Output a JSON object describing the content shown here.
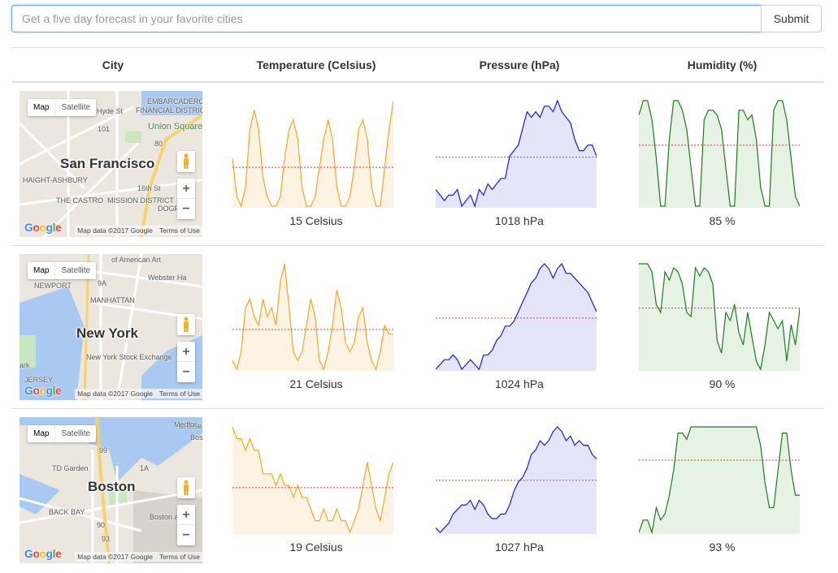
{
  "search": {
    "placeholder": "Get a five day forecast in your favorite cities",
    "submit_label": "Submit"
  },
  "table": {
    "headers": [
      "City",
      "Temperature (Celsius)",
      "Pressure (hPa)",
      "Humidity (%)"
    ]
  },
  "map_controls": {
    "map_label": "Map",
    "satellite_label": "Satellite",
    "zoom_in": "+",
    "zoom_out": "−",
    "google": "Google",
    "map_data": "Map data ©2017 Google",
    "terms": "Terms of Use"
  },
  "colors": {
    "temperature_line": "#f5a623",
    "temperature_fill": "#fdf3e3",
    "pressure_line": "#1a1ad8",
    "pressure_fill": "#e4e4fb",
    "humidity_line": "#1e7b1e",
    "humidity_fill": "#e6f2e4",
    "average_line": "#e23b3b"
  },
  "rows": [
    {
      "city": "San Francisco",
      "pois": [
        "EMBARCADERO",
        "FINANCIAL DISTRICT",
        "Union Square",
        "HAIGHT-ASHBURY",
        "THE CASTRO",
        "MISSION DISTRICT",
        "16th St",
        "DOGP",
        "101",
        "80",
        "Hyde St"
      ],
      "temperature_label": "15 Celsius",
      "pressure_label": "1018 hPa",
      "humidity_label": "85 %",
      "temperature": [
        14,
        10,
        9,
        11,
        17,
        19,
        17,
        12,
        10,
        9,
        9,
        10,
        14,
        17,
        18,
        16,
        11,
        9,
        9,
        10,
        13,
        16,
        18,
        16,
        11,
        9,
        9,
        10,
        13,
        17,
        18,
        16,
        11,
        9,
        9,
        13,
        17,
        20
      ],
      "pressure": [
        1012,
        1011,
        1010,
        1011,
        1011,
        1012,
        1009,
        1010,
        1011,
        1009,
        1012,
        1011,
        1013,
        1012,
        1013,
        1014,
        1014,
        1018,
        1019,
        1020,
        1023,
        1026,
        1025,
        1026,
        1025,
        1027,
        1027,
        1026,
        1028,
        1026,
        1025,
        1024,
        1021,
        1019,
        1019,
        1020,
        1020,
        1018
      ],
      "humidity": [
        85,
        88,
        88,
        84,
        76,
        66,
        66,
        80,
        88,
        88,
        86,
        82,
        74,
        66,
        66,
        84,
        86,
        86,
        85,
        82,
        74,
        66,
        66,
        86,
        86,
        84,
        85,
        80,
        70,
        66,
        66,
        86,
        88,
        88,
        84,
        76,
        68,
        66
      ]
    },
    {
      "city": "New York",
      "pois": [
        "of American Art",
        "Webster Ha",
        "NEWPORT",
        "MANHATTAN",
        "New York Stock Exchange",
        "JERSEY",
        "ark",
        "9A"
      ],
      "temperature_label": "21 Celsius",
      "pressure_label": "1024 hPa",
      "humidity_label": "90 %",
      "temperature": [
        17,
        16,
        18,
        23,
        24,
        22,
        21,
        24,
        22,
        23,
        21,
        26,
        28,
        23,
        18,
        17,
        18,
        21,
        24,
        22,
        17,
        16,
        18,
        21,
        25,
        23,
        19,
        18,
        19,
        22,
        23,
        19,
        17,
        16,
        18,
        21,
        20,
        20
      ],
      "pressure": [
        1012,
        1013,
        1014,
        1014,
        1015,
        1014,
        1012,
        1013,
        1014,
        1013,
        1012,
        1015,
        1015,
        1016,
        1018,
        1019,
        1021,
        1021,
        1022,
        1024,
        1026,
        1028,
        1030,
        1031,
        1033,
        1034,
        1033,
        1031,
        1033,
        1034,
        1032,
        1032,
        1031,
        1030,
        1029,
        1028,
        1026,
        1024
      ],
      "humidity": [
        100,
        100,
        100,
        98,
        90,
        88,
        98,
        96,
        99,
        98,
        95,
        88,
        87,
        99,
        97,
        99,
        98,
        95,
        81,
        78,
        88,
        86,
        90,
        83,
        80,
        88,
        82,
        76,
        74,
        80,
        88,
        86,
        84,
        86,
        76,
        85,
        80,
        89
      ]
    },
    {
      "city": "Boston",
      "pois": [
        "99",
        "1A",
        "TD Garden",
        "BACK BAY",
        "Boston and E",
        "Bos",
        "Chelsea",
        "90",
        "93",
        "Medfor"
      ],
      "temperature_label": "19 Celsius",
      "pressure_label": "1027 hPa",
      "humidity_label": "93 %",
      "temperature": [
        22,
        21,
        21,
        20,
        21,
        20,
        20,
        18,
        18,
        18,
        17,
        18,
        17,
        17,
        16,
        17,
        16,
        16,
        15,
        14,
        14,
        15,
        14,
        14,
        15,
        14,
        14,
        13,
        14,
        15,
        17,
        19,
        17,
        15,
        14,
        16,
        18,
        19
      ],
      "pressure": [
        1013,
        1012,
        1013,
        1014,
        1016,
        1017,
        1018,
        1018,
        1019,
        1017,
        1019,
        1018,
        1016,
        1015,
        1015,
        1016,
        1016,
        1018,
        1021,
        1023,
        1024,
        1026,
        1029,
        1030,
        1032,
        1031,
        1032,
        1034,
        1035,
        1034,
        1032,
        1033,
        1031,
        1032,
        1031,
        1031,
        1029,
        1028
      ],
      "humidity": [
        82,
        84,
        84,
        82,
        86,
        84,
        85,
        88,
        92,
        98,
        98,
        97,
        99,
        99,
        99,
        99,
        99,
        99,
        99,
        99,
        99,
        99,
        99,
        99,
        99,
        99,
        99,
        99,
        96,
        90,
        86,
        86,
        92,
        98,
        98,
        92,
        88,
        88
      ]
    }
  ]
}
